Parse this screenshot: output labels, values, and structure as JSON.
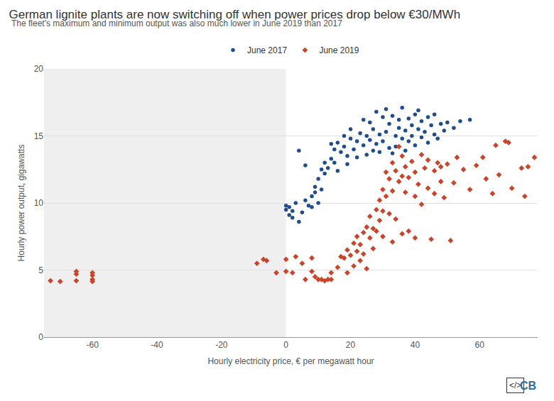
{
  "chart_data": {
    "type": "scatter",
    "title": "German lignite plants are now switching off when power prices drop below €30/MWh",
    "subtitle": "The fleet's maximum and minimum output was also much lower in June 2019 than 2017",
    "x_label": "Hourly electricity price, € per megawatt hour",
    "y_label": "Hourly power output, gigawatts",
    "xlim": [
      -75,
      78
    ],
    "ylim": [
      0,
      20
    ],
    "xticks": [
      -60,
      -40,
      -20,
      0,
      20,
      40,
      60
    ],
    "yticks": [
      0,
      5,
      10,
      15,
      20
    ],
    "grid": true,
    "legend": "top",
    "annotations": [
      {
        "text": "</>"
      },
      {
        "text": "CB"
      }
    ],
    "series": [
      {
        "name": "June 2017",
        "color": "#1f4e8a",
        "marker": "circle",
        "x": [
          0,
          0,
          1,
          1,
          2,
          2,
          4,
          3,
          5,
          6,
          7,
          8,
          8,
          9,
          9,
          10,
          10,
          11,
          11,
          12,
          12,
          13,
          4,
          14,
          15,
          15,
          16,
          17,
          18,
          18,
          19,
          20,
          20,
          21,
          22,
          22,
          23,
          24,
          24,
          25,
          25,
          26,
          26,
          27,
          27,
          28,
          28,
          29,
          29,
          30,
          30,
          31,
          31,
          32,
          32,
          33,
          33,
          34,
          34,
          35,
          35,
          36,
          36,
          37,
          37,
          38,
          38,
          39,
          39,
          40,
          40,
          41,
          41,
          42,
          42,
          43,
          44,
          44,
          45,
          46,
          46,
          47,
          48,
          49,
          50,
          52,
          54,
          57,
          6,
          14,
          19,
          16
        ],
        "y": [
          9.8,
          9.5,
          9.7,
          9.1,
          9.4,
          8.9,
          8.6,
          10,
          9.3,
          10.2,
          9.8,
          10.5,
          9.7,
          10.8,
          11.2,
          10,
          11.8,
          11,
          12.5,
          12.2,
          13,
          12.6,
          13.9,
          13.3,
          14,
          13,
          14.5,
          13.8,
          15,
          14.2,
          13.5,
          14.8,
          15.5,
          14,
          14.6,
          13.4,
          15.2,
          14.3,
          16.2,
          13.6,
          15,
          14.7,
          16,
          13.9,
          15.5,
          14.4,
          16.8,
          15.1,
          13.8,
          16.4,
          14.6,
          15.3,
          17,
          14.1,
          15.9,
          16.5,
          13.7,
          15,
          14.2,
          16.2,
          15.6,
          14.8,
          17.1,
          15.4,
          13.9,
          16.3,
          14.6,
          15.8,
          15,
          16.6,
          14.3,
          15.5,
          16.9,
          14.9,
          16.1,
          15.3,
          16.4,
          14.5,
          15.8,
          15.1,
          16.6,
          14.8,
          15.9,
          15.4,
          16,
          15.6,
          16.1,
          16.2,
          12.8,
          14.4,
          12.9,
          12.4
        ]
      },
      {
        "name": "June 2019",
        "color": "#c8452c",
        "marker": "diamond",
        "x": [
          -73,
          -70,
          -65,
          -65,
          -65,
          -60,
          -60,
          -60,
          -60,
          -9,
          -7,
          -6,
          -3,
          0,
          0,
          2,
          3,
          5,
          6,
          8,
          8,
          9,
          10,
          11,
          12,
          13,
          14,
          14,
          16,
          17,
          18,
          19,
          19,
          20,
          21,
          21,
          22,
          22,
          23,
          23,
          24,
          24,
          25,
          25,
          26,
          26,
          27,
          27,
          28,
          28,
          29,
          29,
          30,
          30,
          30,
          31,
          31,
          32,
          32,
          33,
          33,
          34,
          34,
          35,
          35,
          36,
          36,
          37,
          37,
          38,
          38,
          39,
          40,
          40,
          41,
          42,
          42,
          43,
          44,
          44,
          45,
          46,
          46,
          47,
          48,
          48,
          49,
          50,
          51,
          52,
          53,
          55,
          57,
          59,
          61,
          62,
          64,
          65,
          66,
          68,
          69,
          70,
          73,
          74,
          75,
          77,
          36,
          33,
          40
        ],
        "y": [
          4.2,
          4.15,
          4.9,
          4.7,
          4.2,
          4.8,
          4.6,
          4.3,
          4.15,
          5.5,
          5.8,
          5.7,
          4.8,
          5.8,
          4.9,
          4.8,
          6,
          5.5,
          4.3,
          4.9,
          5.9,
          4.5,
          4.3,
          4.3,
          4.2,
          4.3,
          4.3,
          4.8,
          5.2,
          6,
          5.9,
          4.8,
          6.5,
          6.1,
          7,
          5.3,
          6.4,
          7.5,
          6.9,
          5.7,
          7.8,
          6.2,
          8.2,
          5.1,
          7.4,
          9,
          8.1,
          6.6,
          9.5,
          7.9,
          10.2,
          8.7,
          11,
          9.4,
          7.5,
          12.3,
          10.5,
          11.8,
          9.2,
          13,
          10.9,
          12.4,
          8.8,
          14.2,
          11.6,
          13.5,
          12,
          10.8,
          12.7,
          11.9,
          7.9,
          13.1,
          12.3,
          10.5,
          11.4,
          13.6,
          9.9,
          12.6,
          11.1,
          13.2,
          7.3,
          12.4,
          10.7,
          13,
          12.7,
          11.6,
          10.4,
          12.9,
          7.2,
          11.5,
          13.4,
          12.5,
          11,
          12.8,
          13.4,
          11.8,
          10.7,
          14.3,
          12.1,
          14.6,
          14.5,
          11.1,
          12.6,
          10.5,
          12.7,
          13.4,
          7.7,
          7.1,
          7.4
        ]
      }
    ]
  }
}
